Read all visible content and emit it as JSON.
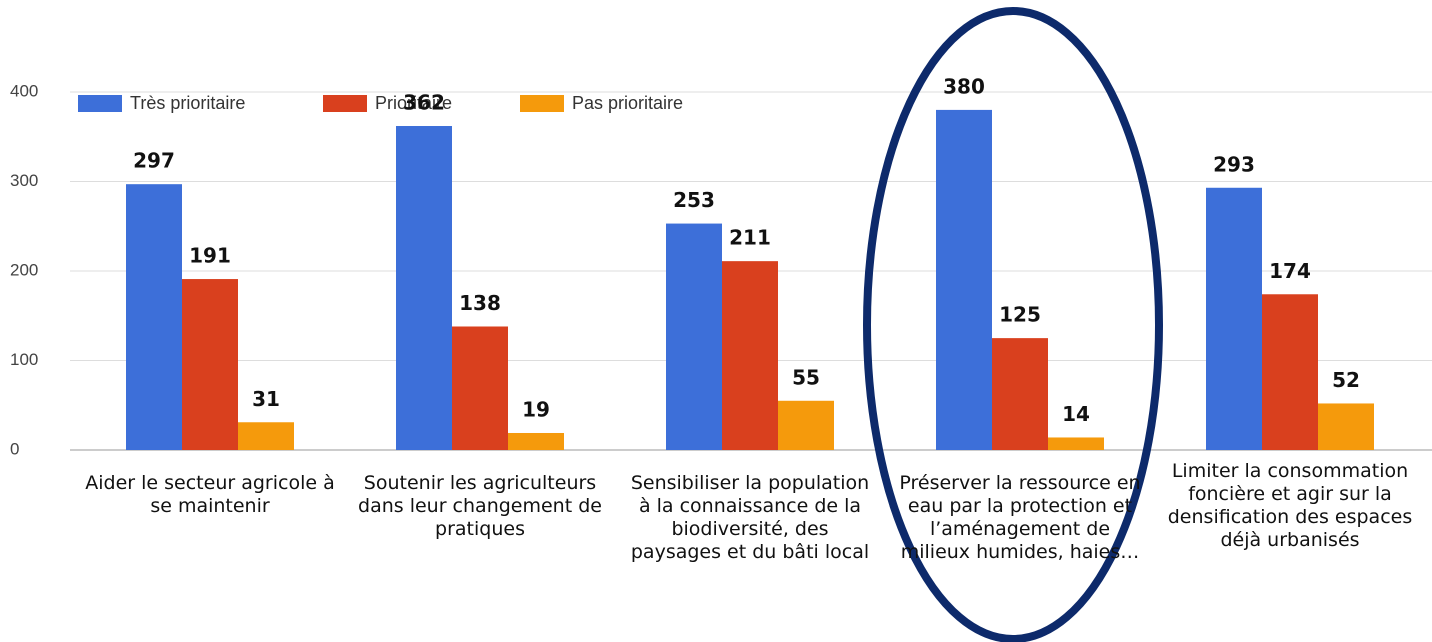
{
  "chart_data": {
    "type": "bar",
    "categories": [
      "Aider le secteur agricole à se maintenir",
      "Soutenir les agriculteurs dans leur changement de pratiques",
      "Sensibiliser la population à la connaissance de la biodiversité, des paysages et du bâti local",
      "Préserver la ressource en eau par la protection et l’aménagement de milieux humides, haies…",
      "Limiter la consommation foncière et agir sur la densification des espaces déjà urbanisés"
    ],
    "series": [
      {
        "name": "Très prioritaire",
        "color": "#3d6fd9",
        "values": [
          297,
          362,
          253,
          380,
          293
        ]
      },
      {
        "name": "Prioritaire",
        "color": "#d9401e",
        "values": [
          191,
          138,
          211,
          125,
          174
        ]
      },
      {
        "name": "Pas prioritaire",
        "color": "#f59a0c",
        "values": [
          31,
          19,
          55,
          14,
          52
        ]
      }
    ],
    "ylim": [
      0,
      400
    ],
    "yticks": [
      0,
      100,
      200,
      300,
      400
    ],
    "grid": true,
    "legend": "top-left"
  }
}
